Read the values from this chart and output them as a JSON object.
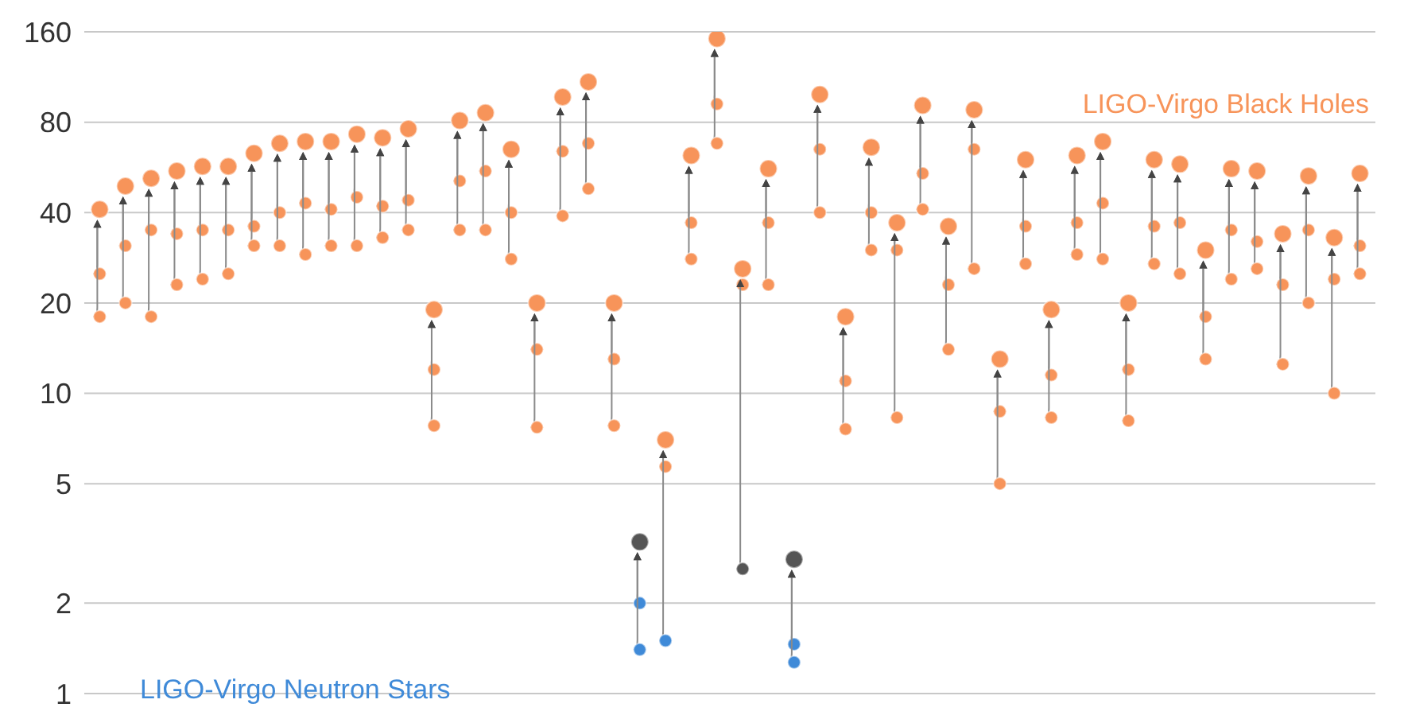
{
  "chart_data": {
    "type": "scatter",
    "categories": [
      null,
      null,
      null,
      null,
      null,
      null,
      null,
      null,
      null,
      null,
      null,
      null,
      null,
      null,
      null,
      null,
      null,
      null,
      null,
      null,
      null,
      null,
      null,
      null,
      null,
      null,
      null,
      null,
      null,
      null,
      null,
      null,
      null,
      null,
      null,
      null,
      null,
      null,
      null,
      null,
      null,
      null,
      null,
      null,
      null,
      null,
      null,
      null,
      null,
      null
    ],
    "series": [
      {
        "values": [
          41,
          49,
          52,
          55,
          57,
          57,
          63,
          68,
          69,
          69,
          73,
          71,
          76,
          19,
          81,
          86,
          65,
          20,
          97,
          109,
          20,
          3.2,
          7,
          62,
          152,
          26,
          56,
          2.8,
          99,
          18,
          66,
          37,
          91,
          36,
          88,
          13,
          60,
          19,
          62,
          69,
          20,
          60,
          58,
          30,
          56,
          55,
          34,
          53,
          33,
          54
        ],
        "colors": [
          "#f7945a",
          "#f7945a",
          "#f7945a",
          "#f7945a",
          "#f7945a",
          "#f7945a",
          "#f7945a",
          "#f7945a",
          "#f7945a",
          "#f7945a",
          "#f7945a",
          "#f7945a",
          "#f7945a",
          "#f7945a",
          "#f7945a",
          "#f7945a",
          "#f7945a",
          "#f7945a",
          "#f7945a",
          "#f7945a",
          "#f7945a",
          "#555555",
          "#f7945a",
          "#f7945a",
          "#f7945a",
          "#f7945a",
          "#f7945a",
          "#555555",
          "#f7945a",
          "#f7945a",
          "#f7945a",
          "#f7945a",
          "#f7945a",
          "#f7945a",
          "#f7945a",
          "#f7945a",
          "#f7945a",
          "#f7945a",
          "#f7945a",
          "#f7945a",
          "#f7945a",
          "#f7945a",
          "#f7945a",
          "#f7945a",
          "#f7945a",
          "#f7945a",
          "#f7945a",
          "#f7945a",
          "#f7945a",
          "#f7945a"
        ]
      },
      {
        "values": [
          25,
          31,
          35,
          34,
          35,
          35,
          36,
          40,
          43,
          41,
          45,
          42,
          44,
          12,
          51,
          55,
          40,
          14,
          64,
          68,
          13,
          2,
          5.7,
          37,
          92,
          23,
          37,
          1.46,
          65,
          11,
          40,
          30,
          54,
          23,
          65,
          8.7,
          36,
          11.5,
          37,
          43,
          12,
          36,
          37,
          18,
          35,
          32,
          23,
          35,
          24,
          31
        ],
        "colors": [
          "#f7945a",
          "#f7945a",
          "#f7945a",
          "#f7945a",
          "#f7945a",
          "#f7945a",
          "#f7945a",
          "#f7945a",
          "#f7945a",
          "#f7945a",
          "#f7945a",
          "#f7945a",
          "#f7945a",
          "#f7945a",
          "#f7945a",
          "#f7945a",
          "#f7945a",
          "#f7945a",
          "#f7945a",
          "#f7945a",
          "#f7945a",
          "#3f8ad8",
          "#f7945a",
          "#f7945a",
          "#f7945a",
          "#f7945a",
          "#f7945a",
          "#3f8ad8",
          "#f7945a",
          "#f7945a",
          "#f7945a",
          "#f7945a",
          "#f7945a",
          "#f7945a",
          "#f7945a",
          "#f7945a",
          "#f7945a",
          "#f7945a",
          "#f7945a",
          "#f7945a",
          "#f7945a",
          "#f7945a",
          "#f7945a",
          "#f7945a",
          "#f7945a",
          "#f7945a",
          "#f7945a",
          "#f7945a",
          "#f7945a",
          "#f7945a"
        ]
      },
      {
        "values": [
          18,
          20,
          18,
          23,
          24,
          25,
          31,
          31,
          29,
          31,
          31,
          33,
          35,
          7.8,
          35,
          35,
          28,
          7.7,
          39,
          48,
          7.8,
          1.4,
          1.5,
          28,
          68,
          2.6,
          23,
          1.27,
          40,
          7.6,
          30,
          8.3,
          41,
          14,
          26,
          5,
          27,
          8.3,
          29,
          28,
          8.1,
          27,
          25,
          13,
          24,
          26,
          12.5,
          20,
          10,
          25
        ],
        "colors": [
          "#f7945a",
          "#f7945a",
          "#f7945a",
          "#f7945a",
          "#f7945a",
          "#f7945a",
          "#f7945a",
          "#f7945a",
          "#f7945a",
          "#f7945a",
          "#f7945a",
          "#f7945a",
          "#f7945a",
          "#f7945a",
          "#f7945a",
          "#f7945a",
          "#f7945a",
          "#f7945a",
          "#f7945a",
          "#f7945a",
          "#f7945a",
          "#3f8ad8",
          "#3f8ad8",
          "#f7945a",
          "#f7945a",
          "#555555",
          "#f7945a",
          "#3f8ad8",
          "#f7945a",
          "#f7945a",
          "#f7945a",
          "#f7945a",
          "#f7945a",
          "#f7945a",
          "#f7945a",
          "#f7945a",
          "#f7945a",
          "#f7945a",
          "#f7945a",
          "#f7945a",
          "#f7945a",
          "#f7945a",
          "#f7945a",
          "#f7945a",
          "#f7945a",
          "#f7945a",
          "#f7945a",
          "#f7945a",
          "#f7945a",
          "#f7945a"
        ]
      }
    ],
    "log": true,
    "ylim": [
      1,
      160
    ],
    "yticks": [
      1,
      2,
      5,
      10,
      20,
      40,
      80,
      160
    ],
    "grid": "y",
    "tick_labels": "y",
    "legend": false,
    "marker": "circle",
    "annotations": [
      "LIGO-Virgo Black Holes",
      "LIGO-Virgo Neutron Stars"
    ]
  }
}
